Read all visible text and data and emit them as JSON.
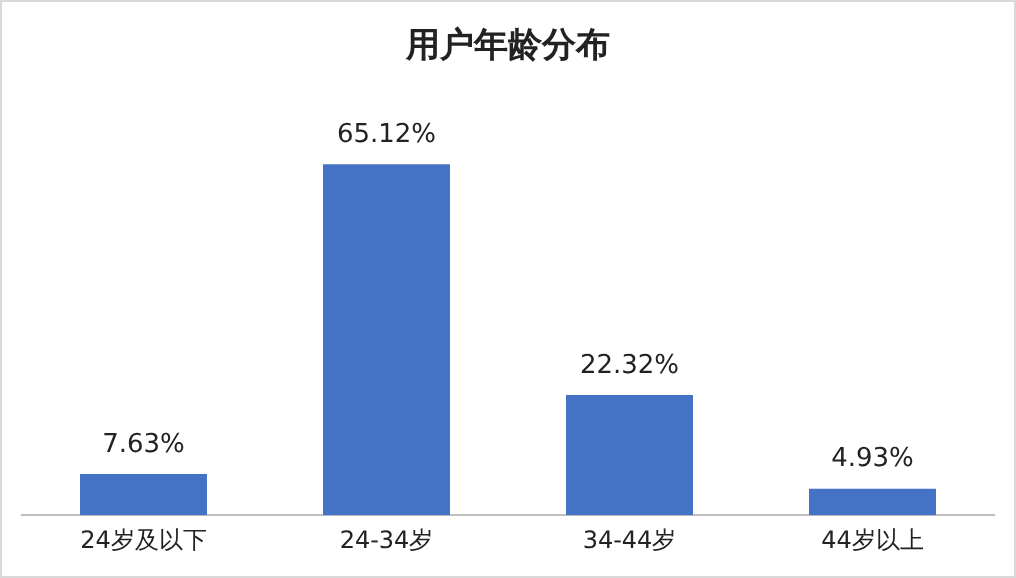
{
  "chart_data": {
    "type": "bar",
    "title": "用户年龄分布",
    "categories": [
      "24岁及以下",
      "24-34岁",
      "34-44岁",
      "44岁以上"
    ],
    "values": [
      7.63,
      65.12,
      22.32,
      4.93
    ],
    "value_labels": [
      "7.63%",
      "65.12%",
      "22.32%",
      "4.93%"
    ],
    "color": "#4472c4",
    "grid": false,
    "legend": false
  }
}
